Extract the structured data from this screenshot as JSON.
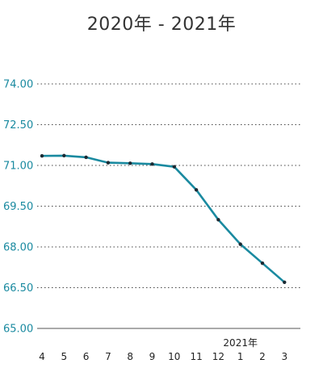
{
  "title": "2020年 - 2021年",
  "colors": {
    "axis_label": "#1a8aa0",
    "line": "#1a8aa0",
    "point": "#1b2a33",
    "grid": "#444444",
    "baseline": "#555555"
  },
  "chart_data": {
    "type": "line",
    "title": "2020年 - 2021年",
    "xlabel": "",
    "ylabel": "",
    "categories": [
      "4",
      "5",
      "6",
      "7",
      "8",
      "9",
      "10",
      "11",
      "12",
      "1",
      "2",
      "3"
    ],
    "x_group_labels": [
      {
        "label": "2021年",
        "at_category": "1"
      }
    ],
    "ylim": [
      65.0,
      74.0
    ],
    "yticks": [
      "65.00",
      "66.50",
      "68.00",
      "69.50",
      "71.00",
      "72.50",
      "74.00"
    ],
    "grid": "horizontal-dotted",
    "series": [
      {
        "values": [
          71.35,
          71.36,
          71.3,
          71.1,
          71.08,
          71.05,
          70.95,
          70.1,
          69.0,
          68.1,
          67.4,
          66.7
        ]
      }
    ]
  }
}
